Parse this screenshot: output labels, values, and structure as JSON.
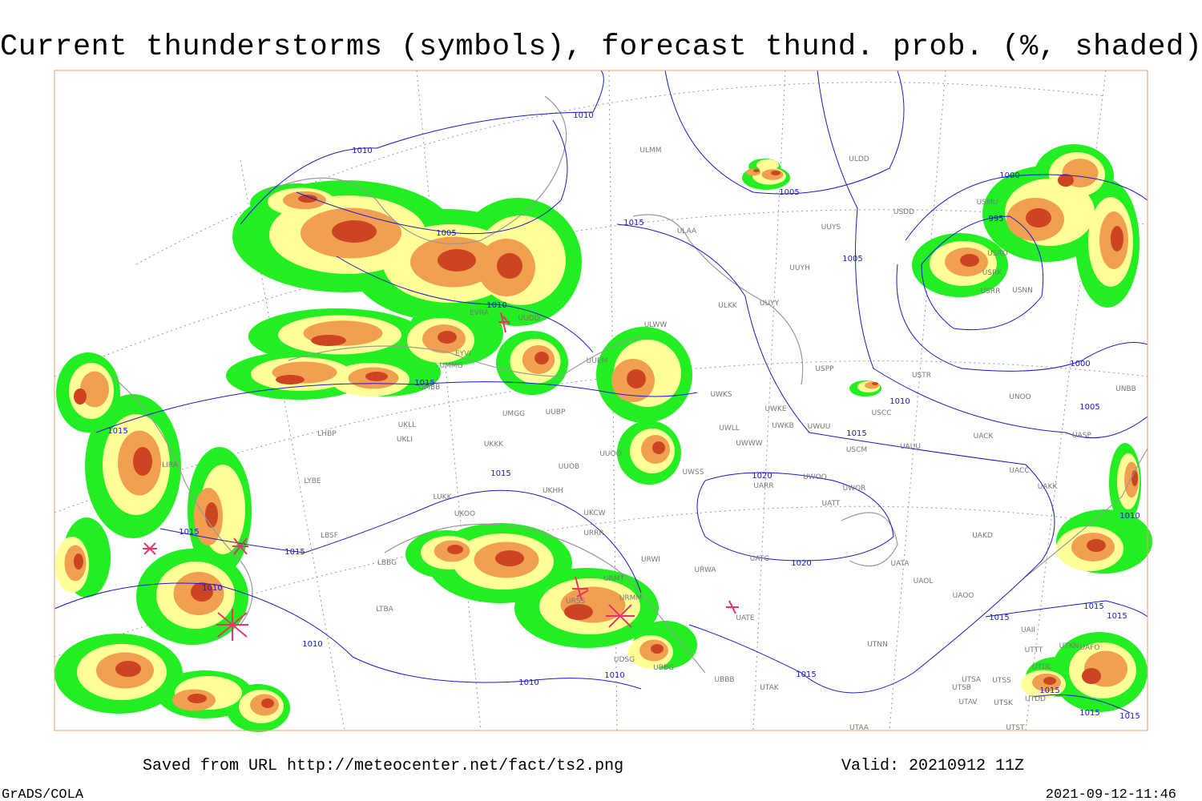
{
  "header": {
    "title": "Current thunderstorms (symbols), forecast thund. prob. (%, shaded)"
  },
  "isobar_labels": [
    "1010",
    "1010",
    "1005",
    "1015",
    "1010",
    "1005",
    "1005",
    "1000",
    "995",
    "1000",
    "1010",
    "1005",
    "1015",
    "1015",
    "1015",
    "1015",
    "1020",
    "1020",
    "1015",
    "1015",
    "1010",
    "1010",
    "1010",
    "1010",
    "1015",
    "1010",
    "1015",
    "1015",
    "1015",
    "1015",
    "1015",
    "1015"
  ],
  "stations": [
    "ULMM",
    "ULDD",
    "USDD",
    "UUYS",
    "ULAA",
    "UUYH",
    "ULKK",
    "UUYY",
    "ULWW",
    "USMU",
    "USRO",
    "USRK",
    "USRR",
    "USNN",
    "EVRA",
    "UUDD",
    "EYVI",
    "UMMG",
    "UUEM",
    "UMBB",
    "UMGG",
    "UUBP",
    "UWKS",
    "UWKE",
    "UWKB",
    "UWUU",
    "UWLL",
    "UWWW",
    "USPP",
    "USTR",
    "USCC",
    "USCM",
    "UAUU",
    "UNOO",
    "UACK",
    "UASP",
    "UACC",
    "UAKK",
    "UNBB",
    "LHBP",
    "UKLL",
    "UKLI",
    "UKKK",
    "UUOO",
    "UUOB",
    "UKHH",
    "UKCW",
    "URRR",
    "LUKK",
    "UKOO",
    "LYBE",
    "LIRA",
    "LBSF",
    "LBBG",
    "LTBA",
    "URWI",
    "URWA",
    "UATG",
    "URMT",
    "URMM",
    "URSS",
    "UATE",
    "UBBB",
    "UDSG",
    "UBBG",
    "UTAK",
    "UTAA",
    "UATA",
    "UAOL",
    "UAOO",
    "UAKD",
    "UATT",
    "UARR",
    "UWOO",
    "UWOR",
    "UWSS",
    "UTNN",
    "UTSA",
    "UTSB",
    "UTSS",
    "UTAV",
    "UTSK",
    "UTST",
    "UTDD",
    "UTDL",
    "UTTT",
    "UTKN",
    "UAFO",
    "UAII"
  ],
  "footer": {
    "source": "Saved from URL http://meteocenter.net/fact/ts2.png",
    "valid": "Valid: 20210912 11Z",
    "software": "GrADS/COLA",
    "timestamp": "2021-09-12-11:46"
  }
}
